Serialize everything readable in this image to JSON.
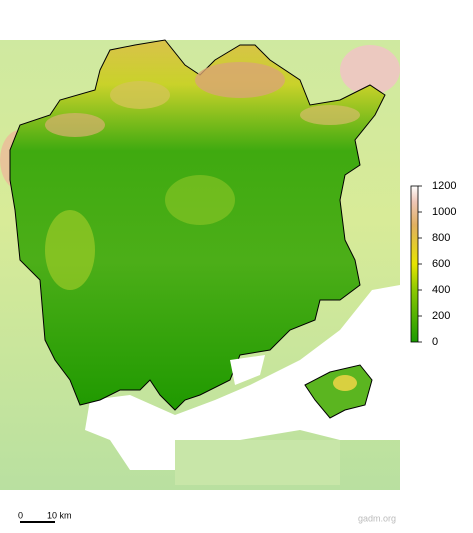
{
  "legend": {
    "lim": [
      0,
      1200
    ],
    "ticks": [
      0,
      200,
      400,
      600,
      800,
      1000,
      1200
    ]
  },
  "scale_bar": {
    "start": "0",
    "end": "10 km"
  },
  "credit": "gadm.org"
}
